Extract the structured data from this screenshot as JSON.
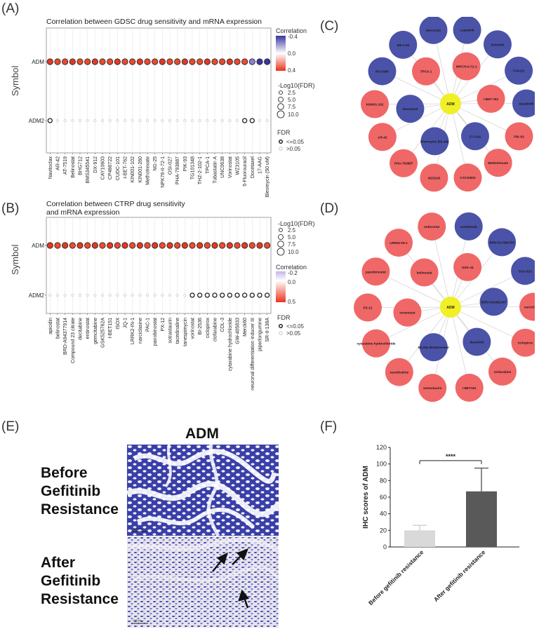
{
  "panels": {
    "A": "(A)",
    "B": "(B)",
    "C": "(C)",
    "D": "(D)",
    "E": "(E)",
    "F": "(F)"
  },
  "gdsc": {
    "title": "Correlation between GDSC drug sensitivity and mRNA expression",
    "ylabel": "Symbol",
    "rows": [
      "ADM",
      "ADM2"
    ],
    "drugs": [
      "Navitoclax",
      "AR-42",
      "AT-7519",
      "Belinostat",
      "BHG712",
      "BMS345541",
      "DX-912",
      "CAY10603",
      "CP466722",
      "CUDC-101",
      "I-BET-762",
      "KIN001-102",
      "KIN001-260",
      "Methotrexate",
      "NG-25",
      "NPK76-II-72-1",
      "OSI-027",
      "PHA-793887",
      "PIK-93",
      "TG101348",
      "THZ-2-102-1",
      "TPCA-1",
      "Tubastatin A",
      "UNC0638",
      "Vorinostat",
      "WZ3105",
      "5-Fluorouracil",
      "Docetaxel",
      "17-AAG",
      "Bleomycin (50 uM)"
    ],
    "legend_corr_title": "Correlation",
    "legend_corr_ticks": [
      "-0.4",
      "0.0",
      "0.4"
    ],
    "legend_size_title": "-Log10(FDR)",
    "legend_size_values": [
      "2.5",
      "5.0",
      "7.5",
      "10.0"
    ],
    "legend_fdr_title": "FDR",
    "legend_fdr_values": [
      "<=0.05",
      ">0.05"
    ]
  },
  "ctrp": {
    "title_line1": "Correlation between CTRP drug sensitivity",
    "title_line2": "and mRNA expression",
    "ylabel": "Symbol",
    "rows": [
      "ADM",
      "ADM2"
    ],
    "drugs": [
      "apicidin",
      "belinostat",
      "BRD-A94377914",
      "Compound 23 citrate",
      "decitabine",
      "entinostat",
      "gemcitabine",
      "GSK525762A",
      "I-BET151",
      "ISOX",
      "JQ-1",
      "LRRK2-IN-1",
      "narciclasine",
      "PAC-1",
      "panobinostat",
      "PX-12",
      "sotrastaurin",
      "tacedinaline",
      "tanespimycin",
      "vorinostat",
      "BI-2536",
      "ciclopirox",
      "clofarabine",
      "COL-3",
      "cytarabine hydrochloride",
      "GW-405833",
      "Merck60",
      "neuronal differentiation inducer III",
      "piperlongumine",
      "SR-II-138A"
    ],
    "legend_size_title": "-Log10(FDR)",
    "legend_size_values": [
      "2.5",
      "5.0",
      "7.5",
      "10.0"
    ],
    "legend_corr_title": "Correlation",
    "legend_corr_ticks": [
      "-0.2",
      "0.0",
      "0.5"
    ],
    "legend_fdr_title": "FDR",
    "legend_fdr_values": [
      "<=0.05",
      ">0.05"
    ]
  },
  "network_c": {
    "center": "ADM",
    "nodes": [
      {
        "label": "Lapatinib",
        "color": "blue"
      },
      {
        "label": "Erlotinib",
        "color": "blue"
      },
      {
        "label": "TGX221",
        "color": "blue"
      },
      {
        "label": "Dasatinib",
        "color": "blue"
      },
      {
        "label": "PIK-93",
        "color": "red"
      },
      {
        "label": "Methotrexate",
        "color": "red"
      },
      {
        "label": "CAY10603",
        "color": "red"
      },
      {
        "label": "WZ3105",
        "color": "red"
      },
      {
        "label": "PHA-793887",
        "color": "red"
      },
      {
        "label": "AR-42",
        "color": "red"
      },
      {
        "label": "KIN001-102",
        "color": "red"
      },
      {
        "label": "RO-3306",
        "color": "blue"
      },
      {
        "label": "WZ-1-84",
        "color": "blue"
      },
      {
        "label": "WH-4-023",
        "color": "blue"
      },
      {
        "label": "NPK76-II-72-1",
        "color": "red"
      },
      {
        "label": "I-BET-762",
        "color": "red"
      },
      {
        "label": "17-AAG",
        "color": "blue"
      },
      {
        "label": "Bleomycin (50 uM)",
        "color": "blue"
      },
      {
        "label": "Docetaxel",
        "color": "blue"
      },
      {
        "label": "TPCA-1",
        "color": "red"
      }
    ]
  },
  "network_d": {
    "center": "ADM",
    "nodes": [
      {
        "label": "vandetanib",
        "color": "blue"
      },
      {
        "label": "BRD-K17060750",
        "color": "blue"
      },
      {
        "label": "SGX-523",
        "color": "blue"
      },
      {
        "label": "narciclasine",
        "color": "red"
      },
      {
        "label": "ciclopirox",
        "color": "red"
      },
      {
        "label": "clofarabine",
        "color": "red"
      },
      {
        "label": "I-BET151",
        "color": "red"
      },
      {
        "label": "sotrastaurin",
        "color": "red"
      },
      {
        "label": "tacedinaline",
        "color": "red"
      },
      {
        "label": "cytarabine hydrochloride",
        "color": "red"
      },
      {
        "label": "PX-12",
        "color": "red"
      },
      {
        "label": "panobinostat",
        "color": "red"
      },
      {
        "label": "LRRK2-IN-1",
        "color": "red"
      },
      {
        "label": "entinostat",
        "color": "red"
      },
      {
        "label": "GSK-J4",
        "color": "red"
      },
      {
        "label": "BRD-K02492147",
        "color": "blue"
      },
      {
        "label": "dasatinib",
        "color": "blue"
      },
      {
        "label": "ML334 diastereomer",
        "color": "blue"
      },
      {
        "label": "vorinostat",
        "color": "red"
      },
      {
        "label": "belinostat",
        "color": "red"
      }
    ]
  },
  "ihc": {
    "title": "ADM",
    "before_label": [
      "Before",
      "Gefitinib",
      "Resistance"
    ],
    "after_label": [
      "After",
      "Gefitinib",
      "Resistance"
    ],
    "scalebar_text": "100 μm"
  },
  "chart_data": {
    "type": "bar",
    "categories": [
      "Before gefitinib resistance",
      "After gefitinib resistance"
    ],
    "values": [
      20,
      67
    ],
    "errors": [
      6,
      28
    ],
    "bar_colors": [
      "#d9d9d9",
      "#595959"
    ],
    "title": "",
    "xlabel": "",
    "ylabel": "IHC scores of ADM",
    "ylim": [
      0,
      120
    ],
    "yticks": [
      0,
      20,
      40,
      60,
      80,
      100,
      120
    ],
    "significance": "****",
    "grid": false,
    "legend": "none"
  },
  "colors": {
    "red_node": "#f06767",
    "blue_node": "#4a53a8",
    "center_node": "#f1ef25",
    "corr_high": "#e8351f",
    "corr_low": "#3a35a0"
  }
}
